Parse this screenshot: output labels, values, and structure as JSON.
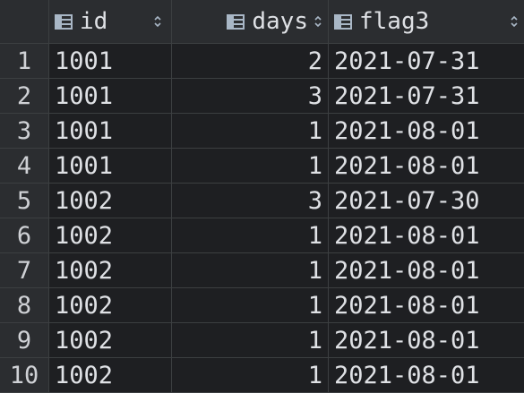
{
  "table": {
    "columns": [
      {
        "label": "id",
        "icon": "column-icon",
        "sort_icon": "sort-icon"
      },
      {
        "label": "days",
        "icon": "column-icon",
        "sort_icon": "sort-icon"
      },
      {
        "label": "flag3",
        "icon": "column-icon",
        "sort_icon": "sort-icon"
      }
    ],
    "rows": [
      {
        "num": "1",
        "id": "1001",
        "days": "2",
        "flag3": "2021-07-31"
      },
      {
        "num": "2",
        "id": "1001",
        "days": "3",
        "flag3": "2021-07-31"
      },
      {
        "num": "3",
        "id": "1001",
        "days": "1",
        "flag3": "2021-08-01"
      },
      {
        "num": "4",
        "id": "1001",
        "days": "1",
        "flag3": "2021-08-01"
      },
      {
        "num": "5",
        "id": "1002",
        "days": "3",
        "flag3": "2021-07-30"
      },
      {
        "num": "6",
        "id": "1002",
        "days": "1",
        "flag3": "2021-08-01"
      },
      {
        "num": "7",
        "id": "1002",
        "days": "1",
        "flag3": "2021-08-01"
      },
      {
        "num": "8",
        "id": "1002",
        "days": "1",
        "flag3": "2021-08-01"
      },
      {
        "num": "9",
        "id": "1002",
        "days": "1",
        "flag3": "2021-08-01"
      },
      {
        "num": "10",
        "id": "1002",
        "days": "1",
        "flag3": "2021-08-01"
      }
    ]
  },
  "colors": {
    "background": "#1e1f22",
    "header_background": "#2b2d30",
    "grid_line": "#3c3f41",
    "text": "#dfe1e5",
    "icon": "#a9b7c6"
  }
}
